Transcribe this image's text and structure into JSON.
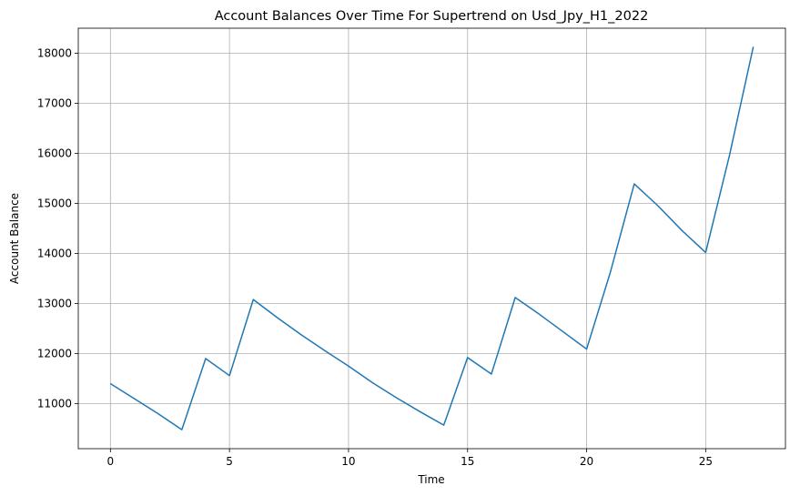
{
  "chart_data": {
    "type": "line",
    "title": "Account Balances Over Time For Supertrend on Usd_Jpy_H1_2022",
    "xlabel": "Time",
    "ylabel": "Account Balance",
    "xlim": [
      -1.35,
      28.35
    ],
    "ylim": [
      10100,
      18500
    ],
    "xticks": [
      0,
      5,
      10,
      15,
      20,
      25
    ],
    "yticks": [
      11000,
      12000,
      13000,
      14000,
      15000,
      16000,
      17000,
      18000
    ],
    "grid": true,
    "series": [
      {
        "color": "#1f77b4",
        "x": [
          0,
          1,
          2,
          3,
          4,
          5,
          6,
          7,
          8,
          9,
          10,
          11,
          12,
          13,
          14,
          15,
          16,
          17,
          18,
          19,
          20,
          21,
          22,
          23,
          24,
          25,
          26,
          27
        ],
        "y": [
          11400,
          11100,
          10800,
          10480,
          11900,
          11560,
          13080,
          12720,
          12380,
          12060,
          11750,
          11420,
          11120,
          10840,
          10570,
          11920,
          11590,
          13120,
          12790,
          12440,
          12090,
          13630,
          15390,
          14950,
          14460,
          14020,
          15960,
          18130
        ]
      }
    ]
  }
}
